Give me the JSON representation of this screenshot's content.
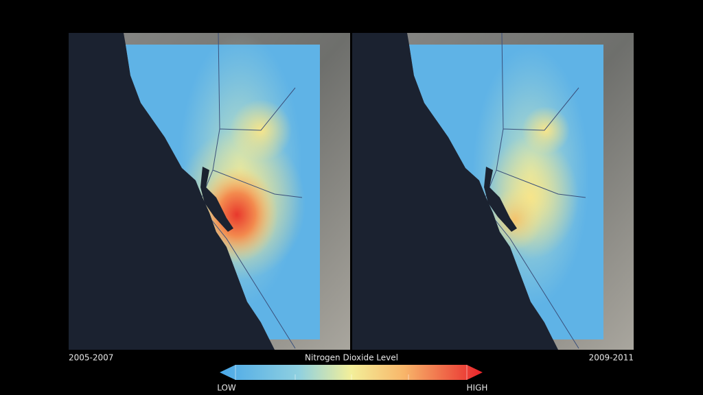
{
  "panels": [
    {
      "label": "2005-2007"
    },
    {
      "label": "2009-2011"
    }
  ],
  "legend": {
    "title": "Nitrogen Dioxide Level",
    "low": "LOW",
    "high": "HIGH"
  }
}
